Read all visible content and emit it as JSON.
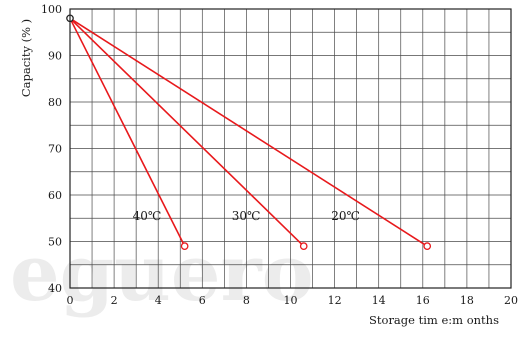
{
  "chart_data": {
    "type": "line",
    "xlabel": "Storage tim e:m onths",
    "ylabel": "Capacity (% )",
    "xlim": [
      0,
      20
    ],
    "ylim": [
      40,
      100
    ],
    "x_ticks": [
      "0",
      "2",
      "4",
      "6",
      "8",
      "10",
      "12",
      "14",
      "16",
      "18",
      "20"
    ],
    "y_ticks": [
      "40",
      "50",
      "60",
      "70",
      "80",
      "90",
      "100"
    ],
    "grid": true,
    "series": [
      {
        "name": "40℃",
        "x": [
          0,
          5.2
        ],
        "y": [
          98,
          49
        ]
      },
      {
        "name": "30℃",
        "x": [
          0,
          10.6
        ],
        "y": [
          98,
          49
        ]
      },
      {
        "name": "20℃",
        "x": [
          0,
          16.2
        ],
        "y": [
          98,
          49
        ]
      }
    ],
    "line_color": "#e8191c",
    "watermark": "eguero"
  }
}
